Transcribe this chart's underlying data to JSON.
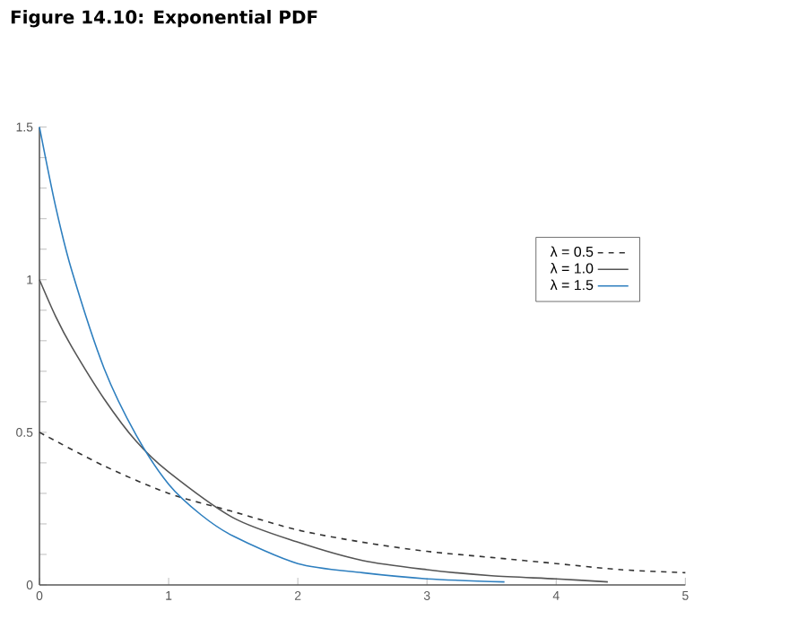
{
  "chart_data": {
    "type": "line",
    "title": "Figure 14.10: Exponential PDF",
    "xlim": [
      0,
      5
    ],
    "ylim": [
      0,
      1.5
    ],
    "xticks": [
      0,
      1,
      2,
      3,
      4,
      5
    ],
    "yticks": [
      0,
      0.5,
      1,
      1.5
    ],
    "grid": false,
    "legend": "top right",
    "marker": "none",
    "series": [
      {
        "name": "λ = 0.5",
        "color": "#333333",
        "line_style": "dashed",
        "x": [
          0,
          0.5,
          1,
          1.5,
          2,
          2.5,
          3,
          3.5,
          4,
          4.5,
          5
        ],
        "values": [
          0.5,
          0.39,
          0.3,
          0.24,
          0.18,
          0.14,
          0.11,
          0.09,
          0.07,
          0.05,
          0.04
        ]
      },
      {
        "name": "λ = 1.0",
        "color": "#555555",
        "line_style": "solid",
        "x": [
          0,
          0.125,
          0.25,
          0.5,
          0.75,
          1,
          1.5,
          2,
          2.5,
          3,
          3.5,
          4,
          4.4
        ],
        "values": [
          1,
          0.88,
          0.78,
          0.61,
          0.47,
          0.37,
          0.22,
          0.14,
          0.08,
          0.05,
          0.03,
          0.02,
          0.01
        ]
      },
      {
        "name": "λ = 1.5",
        "color": "#2e7fbf",
        "line_style": "solid",
        "x": [
          0,
          0.125,
          0.25,
          0.5,
          0.75,
          1,
          1.25,
          1.5,
          2,
          2.5,
          3,
          3.6
        ],
        "values": [
          1.5,
          1.24,
          1.03,
          0.71,
          0.49,
          0.33,
          0.23,
          0.16,
          0.07,
          0.04,
          0.02,
          0.01
        ]
      }
    ]
  }
}
